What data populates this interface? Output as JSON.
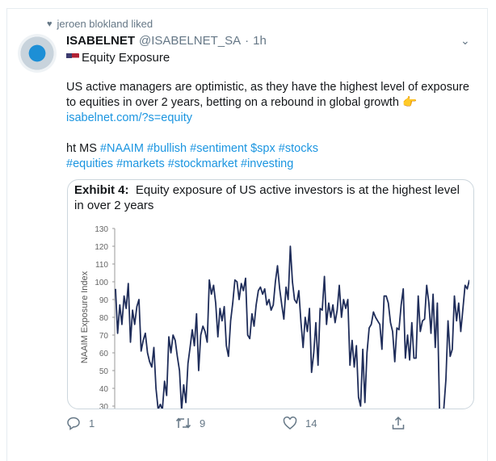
{
  "social_context": {
    "icon": "heart-icon",
    "text": "jeroen blokland liked"
  },
  "tweet": {
    "display_name": "ISABELNET",
    "handle": "@ISABELNET_SA",
    "separator": "·",
    "time": "1h",
    "subject_flag": "us-flag-icon",
    "subject": "Equity Exposure",
    "line1": "US active managers are optimistic, as they have the highest level of exposure",
    "line2": "to equities in over 2 years, betting on a rebound in global growth",
    "emoji": "👉",
    "link": "isabelnet.com/?s=equity",
    "ht": "ht MS",
    "hashtags1": [
      "#NAAIM",
      "#bullish",
      "#sentiment",
      "$spx",
      "#stocks"
    ],
    "hashtags2": [
      "#equities",
      "#markets",
      "#stockmarket",
      "#investing"
    ]
  },
  "actions": {
    "reply_count": "1",
    "retweet_count": "9",
    "like_count": "14"
  },
  "chart_data": {
    "type": "line",
    "title_bold": "Exhibit 4:",
    "title": "Equity exposure of US active investors is at the highest level in over 2 years",
    "ylabel": "NAAIM Exposure Index",
    "ylim": [
      30,
      130
    ],
    "yticks": [
      "130",
      "120",
      "110",
      "100",
      "90",
      "80",
      "70",
      "60",
      "50",
      "40",
      "30"
    ],
    "line_color": "#1f2d5a",
    "values": [
      96,
      71,
      87,
      76,
      92,
      85,
      99,
      66,
      84,
      76,
      86,
      90,
      61,
      67,
      71,
      60,
      55,
      52,
      63,
      40,
      28,
      31,
      28,
      44,
      36,
      69,
      60,
      70,
      67,
      58,
      50,
      28,
      42,
      32,
      54,
      63,
      73,
      64,
      82,
      50,
      70,
      75,
      72,
      66,
      101,
      93,
      98,
      88,
      69,
      85,
      78,
      86,
      64,
      58,
      78,
      88,
      101,
      100,
      90,
      99,
      95,
      102,
      70,
      68,
      82,
      75,
      87,
      95,
      97,
      93,
      96,
      87,
      90,
      84,
      87,
      100,
      109,
      96,
      87,
      79,
      97,
      90,
      120,
      100,
      90,
      88,
      95,
      77,
      63,
      80,
      72,
      85,
      49,
      60,
      77,
      53,
      85,
      84,
      103,
      76,
      88,
      80,
      87,
      77,
      84,
      98,
      80,
      90,
      85,
      90,
      53,
      67,
      52,
      64,
      35,
      30,
      62,
      32,
      60,
      74,
      76,
      83,
      80,
      78,
      76,
      62,
      92,
      92,
      88,
      77,
      72,
      55,
      74,
      73,
      87,
      96,
      57,
      70,
      56,
      77,
      57,
      57,
      92,
      72,
      78,
      79,
      98,
      88,
      71,
      93,
      63,
      88,
      28,
      20,
      28,
      45,
      78,
      58,
      62,
      92,
      78,
      88,
      72,
      85,
      98,
      96,
      101
    ]
  }
}
